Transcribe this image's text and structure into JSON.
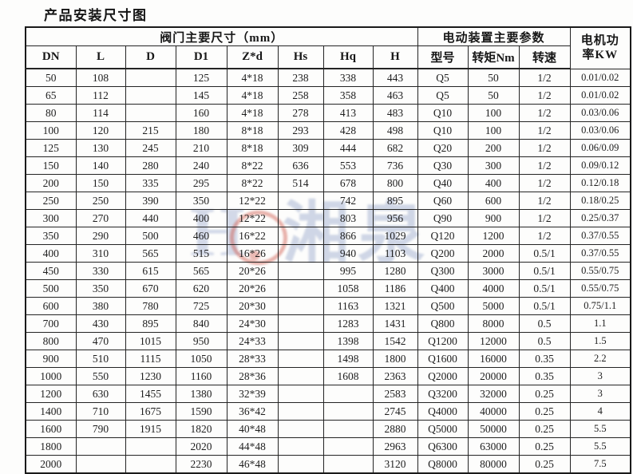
{
  "title": "产品安装尺寸图",
  "watermark": {
    "block_glyph": "H",
    "text": "湘泉",
    "ring_color": "#cf5448",
    "text_color": "#a9b7d3"
  },
  "table": {
    "group_headers": [
      {
        "label": "阀门主要尺寸（mm）",
        "span": 8
      },
      {
        "label": "电动装置主要参数",
        "span": 3
      }
    ],
    "power_header_lines": [
      "电机功",
      "率KW"
    ],
    "columns": [
      "DN",
      "L",
      "D",
      "D1",
      "Z*d",
      "Hs",
      "Hq",
      "H",
      "型号",
      "转矩Nm",
      "转速"
    ],
    "rows": [
      [
        "50",
        "108",
        "",
        "125",
        "4*18",
        "238",
        "338",
        "443",
        "Q5",
        "50",
        "1/2",
        "0.01/0.02"
      ],
      [
        "65",
        "112",
        "",
        "145",
        "4*18",
        "258",
        "358",
        "463",
        "Q5",
        "50",
        "1/2",
        "0.01/0.02"
      ],
      [
        "80",
        "114",
        "",
        "160",
        "4*18",
        "278",
        "413",
        "483",
        "Q10",
        "100",
        "1/2",
        "0.03/0.06"
      ],
      [
        "100",
        "120",
        "215",
        "180",
        "8*18",
        "293",
        "428",
        "498",
        "Q10",
        "100",
        "1/2",
        "0.03/0.06"
      ],
      [
        "125",
        "130",
        "245",
        "210",
        "8*18",
        "309",
        "444",
        "682",
        "Q20",
        "200",
        "1/2",
        "0.06/0.09"
      ],
      [
        "150",
        "140",
        "280",
        "240",
        "8*22",
        "636",
        "553",
        "736",
        "Q30",
        "300",
        "1/2",
        "0.09/0.12"
      ],
      [
        "200",
        "150",
        "335",
        "295",
        "8*22",
        "514",
        "678",
        "800",
        "Q40",
        "400",
        "1/2",
        "0.12/0.18"
      ],
      [
        "250",
        "250",
        "390",
        "350",
        "12*22",
        "",
        "742",
        "895",
        "Q60",
        "600",
        "1/2",
        "0.18/0.25"
      ],
      [
        "300",
        "270",
        "440",
        "400",
        "12*22",
        "",
        "803",
        "956",
        "Q90",
        "900",
        "1/2",
        "0.25/0.37"
      ],
      [
        "350",
        "290",
        "500",
        "460",
        "16*22",
        "",
        "866",
        "1029",
        "Q120",
        "1200",
        "1/2",
        "0.37/0.55"
      ],
      [
        "400",
        "310",
        "565",
        "515",
        "16*26",
        "",
        "940",
        "1103",
        "Q200",
        "2000",
        "0.5/1",
        "0.37/0.55"
      ],
      [
        "450",
        "330",
        "615",
        "565",
        "20*26",
        "",
        "995",
        "1280",
        "Q300",
        "3000",
        "0.5/1",
        "0.55/0.75"
      ],
      [
        "500",
        "350",
        "670",
        "620",
        "20*26",
        "",
        "1058",
        "1186",
        "Q400",
        "4000",
        "0.5/1",
        "0.55/0.75"
      ],
      [
        "600",
        "380",
        "780",
        "725",
        "20*30",
        "",
        "1163",
        "1321",
        "Q500",
        "5000",
        "0.5/1",
        "0.75/1.1"
      ],
      [
        "700",
        "430",
        "895",
        "840",
        "24*30",
        "",
        "1283",
        "1431",
        "Q800",
        "8000",
        "0.5",
        "1.1"
      ],
      [
        "800",
        "470",
        "1015",
        "950",
        "24*33",
        "",
        "1398",
        "1542",
        "Q1200",
        "12000",
        "0.5",
        "1.5"
      ],
      [
        "900",
        "510",
        "1115",
        "1050",
        "28*33",
        "",
        "1498",
        "1800",
        "Q1600",
        "16000",
        "0.35",
        "2.2"
      ],
      [
        "1000",
        "550",
        "1230",
        "1160",
        "28*36",
        "",
        "1608",
        "2363",
        "Q2000",
        "20000",
        "0.35",
        "3"
      ],
      [
        "1200",
        "630",
        "1455",
        "1380",
        "32*39",
        "",
        "",
        "2583",
        "Q3200",
        "32000",
        "0.25",
        "3"
      ],
      [
        "1400",
        "710",
        "1675",
        "1590",
        "36*42",
        "",
        "",
        "2745",
        "Q4000",
        "40000",
        "0.25",
        "4"
      ],
      [
        "1600",
        "790",
        "1915",
        "1820",
        "40*48",
        "",
        "",
        "2880",
        "Q5000",
        "50000",
        "0.25",
        "5.5"
      ],
      [
        "1800",
        "",
        "",
        "2020",
        "44*48",
        "",
        "",
        "2963",
        "Q6300",
        "63000",
        "0.25",
        "5.5"
      ],
      [
        "2000",
        "",
        "",
        "2230",
        "46*48",
        "",
        "",
        "3120",
        "Q8000",
        "80000",
        "0.25",
        "7.5"
      ]
    ]
  }
}
